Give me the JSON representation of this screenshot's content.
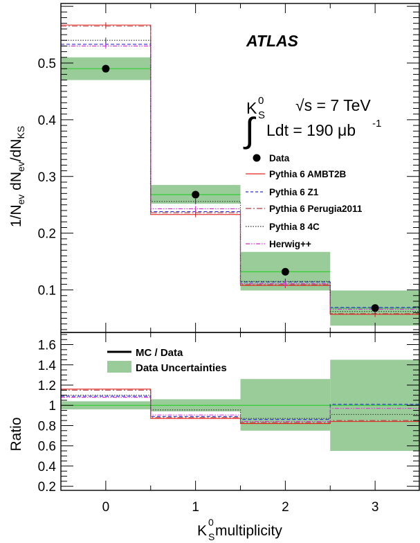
{
  "chart_data": [
    {
      "type": "histogram",
      "panel": "main",
      "xlabel": {
        "main": "K",
        "sup": "0",
        "sub": "S",
        "rest": " multiplicity"
      },
      "ylabel": {
        "p1": "1/N",
        "s1": "ev",
        "p2": " dN",
        "s2": "ev",
        "p3": "/dN",
        "s3": "KS"
      },
      "xlim": [
        -0.5,
        3.5
      ],
      "ylim": [
        0.025,
        0.605
      ],
      "xticks": [
        "0",
        "1",
        "2",
        "3"
      ],
      "yticks": [
        0.1,
        0.2,
        0.3,
        0.4,
        0.5
      ],
      "ytick_labels": [
        "0.1",
        "0.2",
        "0.3",
        "0.4",
        "0.5"
      ],
      "data": {
        "name": "Data",
        "x": [
          0,
          1,
          2,
          3
        ],
        "y": [
          0.49,
          0.268,
          0.132,
          0.068
        ],
        "band_low": [
          0.47,
          0.252,
          0.099,
          0.037
        ],
        "band_high": [
          0.51,
          0.285,
          0.167,
          0.099
        ],
        "band_color": "#99cc99",
        "line_color": "#33cc33"
      },
      "series": [
        {
          "name": "Pythia 6 AMBT2B",
          "values": [
            0.567,
            0.233,
            0.108,
            0.057
          ],
          "color": "#e8211d",
          "dash": "solid"
        },
        {
          "name": "Pythia 6 Z1",
          "values": [
            0.533,
            0.238,
            0.114,
            0.069
          ],
          "color": "#2b2bd9",
          "dash": "dashed"
        },
        {
          "name": "Pythia 6 Perugia2011",
          "values": [
            0.565,
            0.236,
            0.109,
            0.058
          ],
          "color": "#b03a3a",
          "dash": "dashdot"
        },
        {
          "name": "Pythia 8 4C",
          "values": [
            0.54,
            0.256,
            0.115,
            0.062
          ],
          "color": "#333333",
          "dash": "dotted"
        },
        {
          "name": "Herwig++",
          "values": [
            0.53,
            0.243,
            0.111,
            0.066
          ],
          "color": "#dd22dd",
          "dash": "dashdotdot"
        }
      ],
      "annotations": {
        "experiment": "ATLAS",
        "particle": "K",
        "particle_sup": "0",
        "particle_sub": "S",
        "energy": "√s = 7 TeV",
        "lumi_prefix": "∫",
        "lumi": "Ldt = 190 μb",
        "lumi_sup": "-1"
      },
      "legend_position": "right"
    },
    {
      "type": "histogram",
      "panel": "ratio",
      "ylabel": "Ratio",
      "xlim": [
        -0.5,
        3.5
      ],
      "ylim": [
        0.16,
        1.72
      ],
      "yticks": [
        0.2,
        0.4,
        0.6,
        0.8,
        1,
        1.2,
        1.4,
        1.6
      ],
      "ytick_labels": [
        "0.2",
        "0.4",
        "0.6",
        "0.8",
        "1",
        "1.2",
        "1.4",
        "1.6"
      ],
      "band_low": [
        0.96,
        0.94,
        0.75,
        0.55
      ],
      "band_high": [
        1.04,
        1.06,
        1.26,
        1.45
      ],
      "ratios": [
        {
          "name": "Pythia 6 AMBT2B",
          "values": [
            1.16,
            0.87,
            0.82,
            0.84
          ]
        },
        {
          "name": "Pythia 6 Z1",
          "values": [
            1.09,
            0.89,
            0.86,
            1.01
          ]
        },
        {
          "name": "Pythia 6 Perugia2011",
          "values": [
            1.15,
            0.88,
            0.83,
            0.85
          ]
        },
        {
          "name": "Pythia 8 4C",
          "values": [
            1.1,
            0.955,
            0.87,
            0.91
          ]
        },
        {
          "name": "Herwig++",
          "values": [
            1.08,
            0.905,
            0.84,
            0.97
          ]
        }
      ],
      "legend": [
        {
          "name": "MC / Data",
          "kind": "line",
          "color": "#000000"
        },
        {
          "name": "Data Uncertainties",
          "kind": "band",
          "color": "#99cc99"
        }
      ],
      "legend_position": "top-left"
    }
  ]
}
